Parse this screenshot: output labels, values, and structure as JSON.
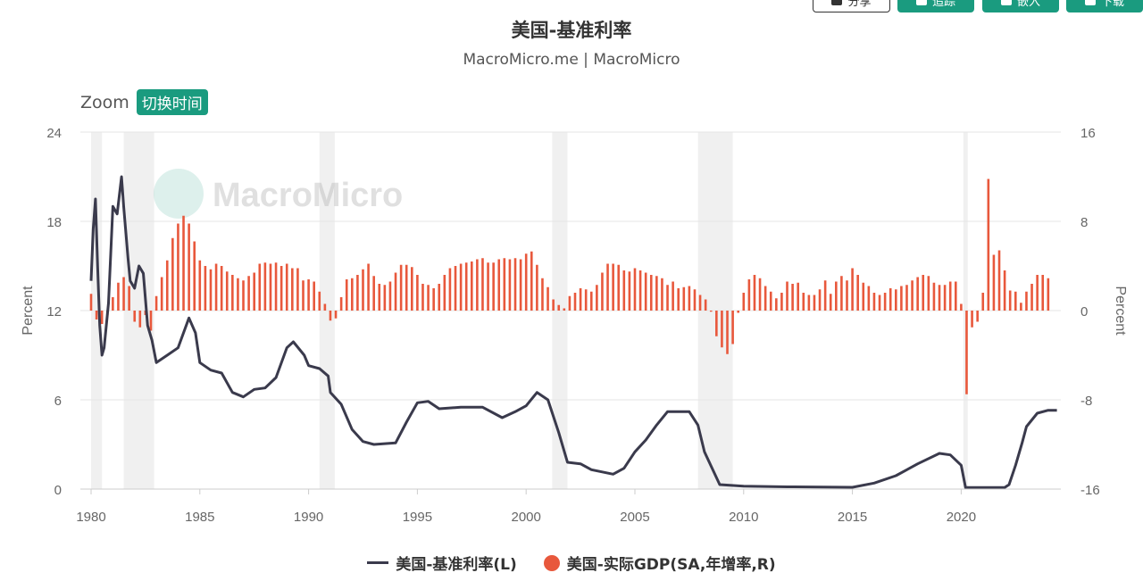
{
  "toolbar": {
    "buttons": [
      {
        "label": "分享"
      },
      {
        "label": "追踪"
      },
      {
        "label": "嵌入"
      },
      {
        "label": "下载"
      }
    ]
  },
  "zoom": {
    "label": "Zoom",
    "button": "切换时间"
  },
  "watermark": "MacroMicro",
  "colors": {
    "rate": "#3a3a4c",
    "gdp": "#e8583c",
    "recession": "#f0f0f0",
    "accent": "#1a9b7f"
  },
  "chart_data": {
    "type": "line",
    "title": "美国-基准利率",
    "subtitle": "MacroMicro.me | MacroMicro",
    "ylabel_left": "Percent",
    "ylabel_right": "Percent",
    "xlim": [
      1980,
      2024.5
    ],
    "ylim_left": [
      0,
      24
    ],
    "ylim_right": [
      -16,
      16
    ],
    "x_ticks": [
      "1980",
      "1985",
      "1990",
      "1995",
      "2000",
      "2005",
      "2010",
      "2015",
      "2020"
    ],
    "y_ticks_left": [
      "0",
      "6",
      "12",
      "18",
      "24"
    ],
    "y_ticks_right": [
      "-16",
      "-8",
      "0",
      "8",
      "16"
    ],
    "grid": true,
    "legend": "bottom-center",
    "recessions": [
      [
        1980.0,
        1980.5
      ],
      [
        1981.5,
        1982.9
      ],
      [
        1990.5,
        1991.2
      ],
      [
        2001.2,
        2001.9
      ],
      [
        2007.9,
        2009.5
      ],
      [
        2020.1,
        2020.3
      ]
    ],
    "series": [
      {
        "name": "美国-基准利率(L)",
        "kind": "line",
        "axis": "left",
        "points": [
          [
            1980.0,
            14.0
          ],
          [
            1980.1,
            17.5
          ],
          [
            1980.2,
            19.5
          ],
          [
            1980.3,
            15.0
          ],
          [
            1980.4,
            11.0
          ],
          [
            1980.5,
            9.0
          ],
          [
            1980.6,
            9.5
          ],
          [
            1980.8,
            12.5
          ],
          [
            1981.0,
            19.0
          ],
          [
            1981.2,
            18.5
          ],
          [
            1981.4,
            21.0
          ],
          [
            1981.5,
            19.0
          ],
          [
            1981.7,
            15.5
          ],
          [
            1981.8,
            14.0
          ],
          [
            1982.0,
            13.5
          ],
          [
            1982.2,
            15.0
          ],
          [
            1982.4,
            14.5
          ],
          [
            1982.6,
            11.0
          ],
          [
            1982.8,
            10.0
          ],
          [
            1983.0,
            8.5
          ],
          [
            1983.5,
            9.0
          ],
          [
            1984.0,
            9.5
          ],
          [
            1984.5,
            11.5
          ],
          [
            1984.8,
            10.5
          ],
          [
            1985.0,
            8.5
          ],
          [
            1985.5,
            8.0
          ],
          [
            1986.0,
            7.8
          ],
          [
            1986.5,
            6.5
          ],
          [
            1987.0,
            6.2
          ],
          [
            1987.5,
            6.7
          ],
          [
            1988.0,
            6.8
          ],
          [
            1988.5,
            7.5
          ],
          [
            1989.0,
            9.5
          ],
          [
            1989.3,
            9.9
          ],
          [
            1989.8,
            9.0
          ],
          [
            1990.0,
            8.3
          ],
          [
            1990.5,
            8.1
          ],
          [
            1990.9,
            7.6
          ],
          [
            1991.0,
            6.5
          ],
          [
            1991.5,
            5.7
          ],
          [
            1992.0,
            4.0
          ],
          [
            1992.5,
            3.2
          ],
          [
            1993.0,
            3.0
          ],
          [
            1994.0,
            3.1
          ],
          [
            1994.5,
            4.5
          ],
          [
            1995.0,
            5.8
          ],
          [
            1995.5,
            5.9
          ],
          [
            1996.0,
            5.4
          ],
          [
            1997.0,
            5.5
          ],
          [
            1998.0,
            5.5
          ],
          [
            1998.9,
            4.8
          ],
          [
            1999.5,
            5.2
          ],
          [
            2000.0,
            5.6
          ],
          [
            2000.5,
            6.5
          ],
          [
            2001.0,
            6.0
          ],
          [
            2001.5,
            3.8
          ],
          [
            2001.9,
            1.8
          ],
          [
            2002.5,
            1.7
          ],
          [
            2003.0,
            1.3
          ],
          [
            2004.0,
            1.0
          ],
          [
            2004.5,
            1.4
          ],
          [
            2005.0,
            2.5
          ],
          [
            2005.5,
            3.3
          ],
          [
            2006.0,
            4.3
          ],
          [
            2006.5,
            5.2
          ],
          [
            2007.5,
            5.2
          ],
          [
            2007.9,
            4.3
          ],
          [
            2008.2,
            2.5
          ],
          [
            2008.9,
            0.3
          ],
          [
            2010.0,
            0.2
          ],
          [
            2012.0,
            0.15
          ],
          [
            2015.0,
            0.12
          ],
          [
            2016.0,
            0.4
          ],
          [
            2017.0,
            0.9
          ],
          [
            2018.0,
            1.7
          ],
          [
            2019.0,
            2.4
          ],
          [
            2019.5,
            2.3
          ],
          [
            2020.0,
            1.6
          ],
          [
            2020.2,
            0.1
          ],
          [
            2022.0,
            0.1
          ],
          [
            2022.2,
            0.3
          ],
          [
            2022.5,
            1.6
          ],
          [
            2022.8,
            3.1
          ],
          [
            2023.0,
            4.2
          ],
          [
            2023.5,
            5.1
          ],
          [
            2024.0,
            5.3
          ],
          [
            2024.4,
            5.3
          ]
        ]
      },
      {
        "name": "美国-实际GDP(SA,年增率,R)",
        "kind": "bar",
        "axis": "right",
        "points": [
          [
            1980.0,
            1.5
          ],
          [
            1980.25,
            -0.8
          ],
          [
            1980.5,
            -1.2
          ],
          [
            1980.75,
            -0.4
          ],
          [
            1981.0,
            1.2
          ],
          [
            1981.25,
            2.5
          ],
          [
            1981.5,
            3.0
          ],
          [
            1981.75,
            2.2
          ],
          [
            1982.0,
            -1.0
          ],
          [
            1982.25,
            -1.5
          ],
          [
            1982.5,
            -0.4
          ],
          [
            1982.75,
            -1.8
          ],
          [
            1983.0,
            1.3
          ],
          [
            1983.25,
            3.0
          ],
          [
            1983.5,
            4.5
          ],
          [
            1983.75,
            6.5
          ],
          [
            1984.0,
            7.8
          ],
          [
            1984.25,
            8.5
          ],
          [
            1984.5,
            7.8
          ],
          [
            1984.75,
            6.2
          ],
          [
            1985.0,
            4.5
          ],
          [
            1985.25,
            4.0
          ],
          [
            1985.5,
            3.7
          ],
          [
            1985.75,
            4.2
          ],
          [
            1986.0,
            4.0
          ],
          [
            1986.25,
            3.5
          ],
          [
            1986.5,
            3.2
          ],
          [
            1986.75,
            2.9
          ],
          [
            1987.0,
            2.7
          ],
          [
            1987.25,
            3.1
          ],
          [
            1987.5,
            3.4
          ],
          [
            1987.75,
            4.2
          ],
          [
            1988.0,
            4.3
          ],
          [
            1988.25,
            4.2
          ],
          [
            1988.5,
            4.3
          ],
          [
            1988.75,
            4.0
          ],
          [
            1989.0,
            4.2
          ],
          [
            1989.25,
            3.8
          ],
          [
            1989.5,
            3.8
          ],
          [
            1989.75,
            2.7
          ],
          [
            1990.0,
            2.8
          ],
          [
            1990.25,
            2.6
          ],
          [
            1990.5,
            1.7
          ],
          [
            1990.75,
            0.6
          ],
          [
            1991.0,
            -0.9
          ],
          [
            1991.25,
            -0.7
          ],
          [
            1991.5,
            1.2
          ],
          [
            1991.75,
            2.8
          ],
          [
            1992.0,
            2.9
          ],
          [
            1992.25,
            3.2
          ],
          [
            1992.5,
            3.7
          ],
          [
            1992.75,
            4.2
          ],
          [
            1993.0,
            3.1
          ],
          [
            1993.25,
            2.4
          ],
          [
            1993.5,
            2.3
          ],
          [
            1993.75,
            2.6
          ],
          [
            1994.0,
            3.4
          ],
          [
            1994.25,
            4.1
          ],
          [
            1994.5,
            4.1
          ],
          [
            1994.75,
            3.9
          ],
          [
            1995.0,
            3.2
          ],
          [
            1995.25,
            2.4
          ],
          [
            1995.5,
            2.3
          ],
          [
            1995.75,
            2.0
          ],
          [
            1996.0,
            2.4
          ],
          [
            1996.25,
            3.2
          ],
          [
            1996.5,
            3.8
          ],
          [
            1996.75,
            4.0
          ],
          [
            1997.0,
            4.2
          ],
          [
            1997.25,
            4.3
          ],
          [
            1997.5,
            4.4
          ],
          [
            1997.75,
            4.6
          ],
          [
            1998.0,
            4.7
          ],
          [
            1998.25,
            4.3
          ],
          [
            1998.5,
            4.3
          ],
          [
            1998.75,
            4.6
          ],
          [
            1999.0,
            4.7
          ],
          [
            1999.25,
            4.6
          ],
          [
            1999.5,
            4.7
          ],
          [
            1999.75,
            4.6
          ],
          [
            2000.0,
            5.1
          ],
          [
            2000.25,
            5.3
          ],
          [
            2000.5,
            4.1
          ],
          [
            2000.75,
            2.9
          ],
          [
            2001.0,
            2.1
          ],
          [
            2001.25,
            1.0
          ],
          [
            2001.5,
            0.5
          ],
          [
            2001.75,
            0.2
          ],
          [
            2002.0,
            1.3
          ],
          [
            2002.25,
            1.6
          ],
          [
            2002.5,
            2.0
          ],
          [
            2002.75,
            1.9
          ],
          [
            2003.0,
            1.7
          ],
          [
            2003.25,
            2.3
          ],
          [
            2003.5,
            3.4
          ],
          [
            2003.75,
            4.2
          ],
          [
            2004.0,
            4.2
          ],
          [
            2004.25,
            4.1
          ],
          [
            2004.5,
            3.6
          ],
          [
            2004.75,
            3.5
          ],
          [
            2005.0,
            3.8
          ],
          [
            2005.25,
            3.6
          ],
          [
            2005.5,
            3.4
          ],
          [
            2005.75,
            3.2
          ],
          [
            2006.0,
            3.1
          ],
          [
            2006.25,
            2.9
          ],
          [
            2006.5,
            2.3
          ],
          [
            2006.75,
            2.6
          ],
          [
            2007.0,
            2.0
          ],
          [
            2007.25,
            2.1
          ],
          [
            2007.5,
            2.2
          ],
          [
            2007.75,
            1.9
          ],
          [
            2008.0,
            1.4
          ],
          [
            2008.25,
            1.0
          ],
          [
            2008.5,
            -0.1
          ],
          [
            2008.75,
            -2.3
          ],
          [
            2009.0,
            -3.3
          ],
          [
            2009.25,
            -3.9
          ],
          [
            2009.5,
            -3.0
          ],
          [
            2009.75,
            -0.2
          ],
          [
            2010.0,
            1.6
          ],
          [
            2010.25,
            2.8
          ],
          [
            2010.5,
            3.2
          ],
          [
            2010.75,
            2.9
          ],
          [
            2011.0,
            2.2
          ],
          [
            2011.25,
            1.7
          ],
          [
            2011.5,
            1.1
          ],
          [
            2011.75,
            1.6
          ],
          [
            2012.0,
            2.6
          ],
          [
            2012.25,
            2.4
          ],
          [
            2012.5,
            2.5
          ],
          [
            2012.75,
            1.6
          ],
          [
            2013.0,
            1.4
          ],
          [
            2013.25,
            1.4
          ],
          [
            2013.5,
            1.9
          ],
          [
            2013.75,
            2.7
          ],
          [
            2014.0,
            1.5
          ],
          [
            2014.25,
            2.6
          ],
          [
            2014.5,
            3.1
          ],
          [
            2014.75,
            2.7
          ],
          [
            2015.0,
            3.8
          ],
          [
            2015.25,
            3.2
          ],
          [
            2015.5,
            2.5
          ],
          [
            2015.75,
            2.2
          ],
          [
            2016.0,
            1.6
          ],
          [
            2016.25,
            1.4
          ],
          [
            2016.5,
            1.6
          ],
          [
            2016.75,
            2.0
          ],
          [
            2017.0,
            1.9
          ],
          [
            2017.25,
            2.2
          ],
          [
            2017.5,
            2.3
          ],
          [
            2017.75,
            2.7
          ],
          [
            2018.0,
            3.0
          ],
          [
            2018.25,
            3.2
          ],
          [
            2018.5,
            3.1
          ],
          [
            2018.75,
            2.5
          ],
          [
            2019.0,
            2.3
          ],
          [
            2019.25,
            2.3
          ],
          [
            2019.5,
            2.6
          ],
          [
            2019.75,
            2.6
          ],
          [
            2020.0,
            0.6
          ],
          [
            2020.25,
            -7.5
          ],
          [
            2020.5,
            -1.5
          ],
          [
            2020.75,
            -1.0
          ],
          [
            2021.0,
            1.6
          ],
          [
            2021.25,
            11.8
          ],
          [
            2021.5,
            5.0
          ],
          [
            2021.75,
            5.4
          ],
          [
            2022.0,
            3.6
          ],
          [
            2022.25,
            1.8
          ],
          [
            2022.5,
            1.7
          ],
          [
            2022.75,
            0.7
          ],
          [
            2023.0,
            1.7
          ],
          [
            2023.25,
            2.4
          ],
          [
            2023.5,
            3.2
          ],
          [
            2023.75,
            3.2
          ],
          [
            2024.0,
            2.9
          ]
        ]
      }
    ]
  }
}
